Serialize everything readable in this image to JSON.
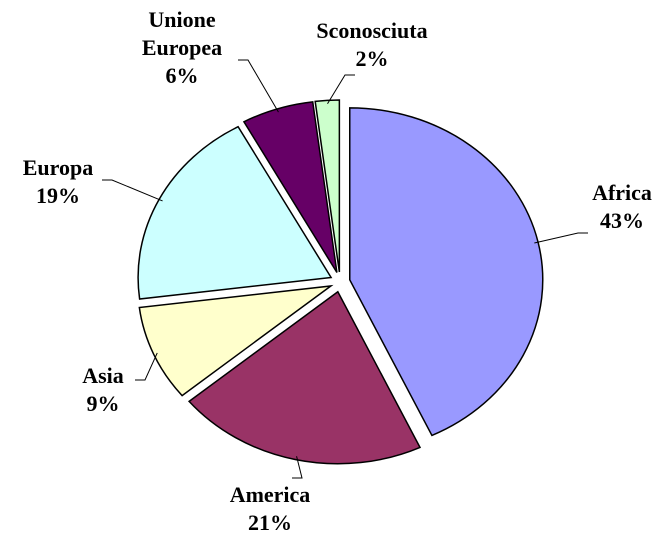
{
  "chart_data": {
    "type": "pie",
    "categories": [
      "Africa",
      "America",
      "Asia",
      "Europa",
      "Unione Europea",
      "Sconosciuta"
    ],
    "values": [
      43,
      21,
      9,
      19,
      6,
      2
    ],
    "value_labels": [
      "43%",
      "21%",
      "9%",
      "19%",
      "6%",
      "2%"
    ],
    "colors": [
      "#9999ff",
      "#993366",
      "#ffffcc",
      "#ccffff",
      "#660066",
      "#ccffcc"
    ]
  }
}
